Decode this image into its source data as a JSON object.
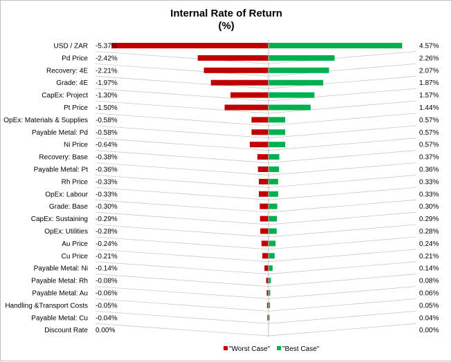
{
  "chart_data": {
    "type": "bar",
    "orientation": "horizontal-tornado",
    "title": "Internal Rate of Return",
    "subtitle": "(%)",
    "xlim": [
      -5.37,
      4.57
    ],
    "grid": true,
    "legend_position": "bottom",
    "categories": [
      "USD / ZAR",
      "Pd Price",
      "Recovery: 4E",
      "Grade: 4E",
      "CapEx: Project",
      "Pt Price",
      "OpEx: Materials & Supplies",
      "Payable Metal: Pd",
      "Ni Price",
      "Recovery: Base",
      "Payable Metal: Pt",
      "Rh Price",
      "OpEx: Labour",
      "Grade: Base",
      "CapEx: Sustaining",
      "OpEx: Utilities",
      "Au Price",
      "Cu Price",
      "Payable Metal: Ni",
      "Payable Metal: Rh",
      "Payable Metal: Au",
      "Handling &Transport Costs",
      "Payable Metal: Cu",
      "Discount Rate"
    ],
    "series": [
      {
        "name": "\"Worst Case\"",
        "color": "#c00000",
        "values": [
          -5.37,
          -2.42,
          -2.21,
          -1.97,
          -1.3,
          -1.5,
          -0.58,
          -0.58,
          -0.64,
          -0.38,
          -0.36,
          -0.33,
          -0.33,
          -0.3,
          -0.29,
          -0.28,
          -0.24,
          -0.21,
          -0.14,
          -0.08,
          -0.06,
          -0.05,
          -0.04,
          0.0
        ],
        "labels": [
          "-5.37%",
          "-2.42%",
          "-2.21%",
          "-1.97%",
          "-1.30%",
          "-1.50%",
          "-0.58%",
          "-0.58%",
          "-0.64%",
          "-0.38%",
          "-0.36%",
          "-0.33%",
          "-0.33%",
          "-0.30%",
          "-0.29%",
          "-0.28%",
          "-0.24%",
          "-0.21%",
          "-0.14%",
          "-0.08%",
          "-0.06%",
          "-0.05%",
          "-0.04%",
          "0.00%"
        ]
      },
      {
        "name": "\"Best Case\"",
        "color": "#00b050",
        "values": [
          4.57,
          2.26,
          2.07,
          1.87,
          1.57,
          1.44,
          0.57,
          0.57,
          0.57,
          0.37,
          0.36,
          0.33,
          0.33,
          0.3,
          0.29,
          0.28,
          0.24,
          0.21,
          0.14,
          0.08,
          0.06,
          0.05,
          0.04,
          0.0
        ],
        "labels": [
          "4.57%",
          "2.26%",
          "2.07%",
          "1.87%",
          "1.57%",
          "1.44%",
          "0.57%",
          "0.57%",
          "0.57%",
          "0.37%",
          "0.36%",
          "0.33%",
          "0.33%",
          "0.30%",
          "0.29%",
          "0.28%",
          "0.24%",
          "0.21%",
          "0.14%",
          "0.08%",
          "0.06%",
          "0.05%",
          "0.04%",
          "0.00%"
        ]
      }
    ],
    "colors": {
      "gridline": "#c8c8c8",
      "axis": "#bfbfbf"
    }
  }
}
